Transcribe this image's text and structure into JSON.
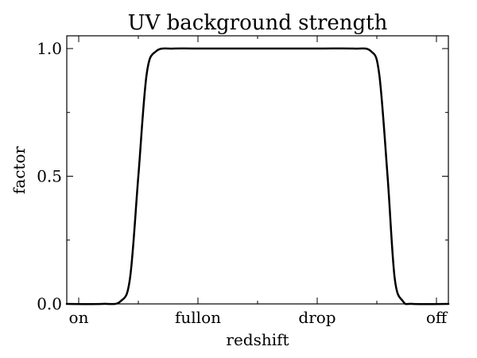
{
  "chart_data": {
    "type": "line",
    "title": "UV background strength",
    "xlabel": "redshift",
    "ylabel": "factor",
    "x_ticks": [
      {
        "label": "on",
        "x": 0
      },
      {
        "label": "fullon",
        "x": 1
      },
      {
        "label": "drop",
        "x": 2
      },
      {
        "label": "off",
        "x": 3
      }
    ],
    "y_ticks": [
      {
        "label": "0.0",
        "y": 0.0
      },
      {
        "label": "0.5",
        "y": 0.5
      },
      {
        "label": "1.0",
        "y": 1.0
      }
    ],
    "xlim": [
      -0.1,
      3.1
    ],
    "ylim": [
      0.0,
      1.05
    ],
    "grid": false,
    "series": [
      {
        "x": [
          -0.1,
          0.2,
          0.35,
          0.43,
          0.5,
          0.57,
          0.65,
          0.8,
          1.0,
          1.5,
          2.0,
          2.3,
          2.45,
          2.52,
          2.59,
          2.65,
          2.72,
          2.8,
          3.1
        ],
        "y": [
          0.0,
          0.0,
          0.01,
          0.1,
          0.5,
          0.9,
          0.99,
          1.0,
          1.0,
          1.0,
          1.0,
          1.0,
          0.99,
          0.9,
          0.5,
          0.1,
          0.01,
          0.0,
          0.0
        ]
      }
    ],
    "colors": {
      "line": "#000000",
      "axes": "#000000",
      "background": "#ffffff"
    }
  }
}
